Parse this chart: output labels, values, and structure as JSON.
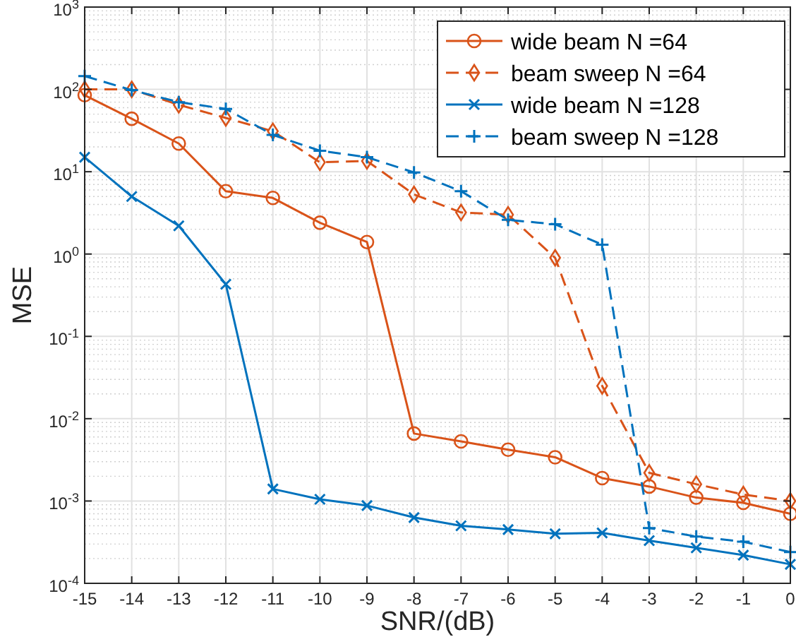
{
  "chart_data": {
    "type": "line",
    "xlabel": "SNR/(dB)",
    "ylabel": "MSE",
    "log": "y",
    "grid": true,
    "legend": "top right",
    "x": [
      -15,
      -14,
      -13,
      -12,
      -11,
      -10,
      -9,
      -8,
      -7,
      -6,
      -5,
      -4,
      -3,
      -2,
      -1,
      0
    ],
    "xlim": [
      -15,
      0
    ],
    "xticks": [
      -15,
      -14,
      -13,
      -12,
      -11,
      -10,
      -9,
      -8,
      -7,
      -6,
      -5,
      -4,
      -3,
      -2,
      -1,
      0
    ],
    "ylim": [
      0.0001,
      1000
    ],
    "yticks": [
      {
        "value": 0.0001,
        "label": "10$^{-4}$"
      },
      {
        "value": 0.001,
        "label": "10$^{-3}$"
      },
      {
        "value": 0.01,
        "label": "10$^{-2}$"
      },
      {
        "value": 0.1,
        "label": "10$^{-1}$"
      },
      {
        "value": 1,
        "label": "10$^{0}$"
      },
      {
        "value": 10,
        "label": "10$^{1}$"
      },
      {
        "value": 100,
        "label": "10$^{2}$"
      },
      {
        "value": 1000,
        "label": "10$^{3}$"
      }
    ],
    "series": [
      {
        "name": "wide beam N =64",
        "color": "#d95319",
        "marker": "circle",
        "line_style": "solid",
        "values": [
          85,
          44,
          22,
          5.8,
          4.8,
          2.4,
          1.4,
          0.0066,
          0.0053,
          0.0042,
          0.0034,
          0.0019,
          0.0015,
          0.0011,
          0.00095,
          0.0007
        ]
      },
      {
        "name": "beam sweep N =64",
        "color": "#d95319",
        "marker": "diamond",
        "line_style": "dashed",
        "values": [
          100,
          100,
          65,
          45,
          31,
          13,
          13.5,
          5.3,
          3.2,
          3,
          0.9,
          0.025,
          0.0022,
          0.0016,
          0.0012,
          0.001
        ]
      },
      {
        "name": "wide beam N =128",
        "color": "#0072bd",
        "marker": "cross",
        "line_style": "solid",
        "values": [
          15,
          5,
          2.2,
          0.43,
          0.0014,
          0.00105,
          0.00088,
          0.00063,
          0.0005,
          0.00045,
          0.0004,
          0.00041,
          0.00033,
          0.00027,
          0.00022,
          0.00017
        ]
      },
      {
        "name": "beam sweep N =128",
        "color": "#0072bd",
        "marker": "plus",
        "line_style": "dashed",
        "values": [
          145,
          98,
          70,
          58,
          28,
          18,
          15,
          9.8,
          5.8,
          2.6,
          2.3,
          1.3,
          0.00047,
          0.00037,
          0.00032,
          0.00024
        ]
      }
    ]
  }
}
